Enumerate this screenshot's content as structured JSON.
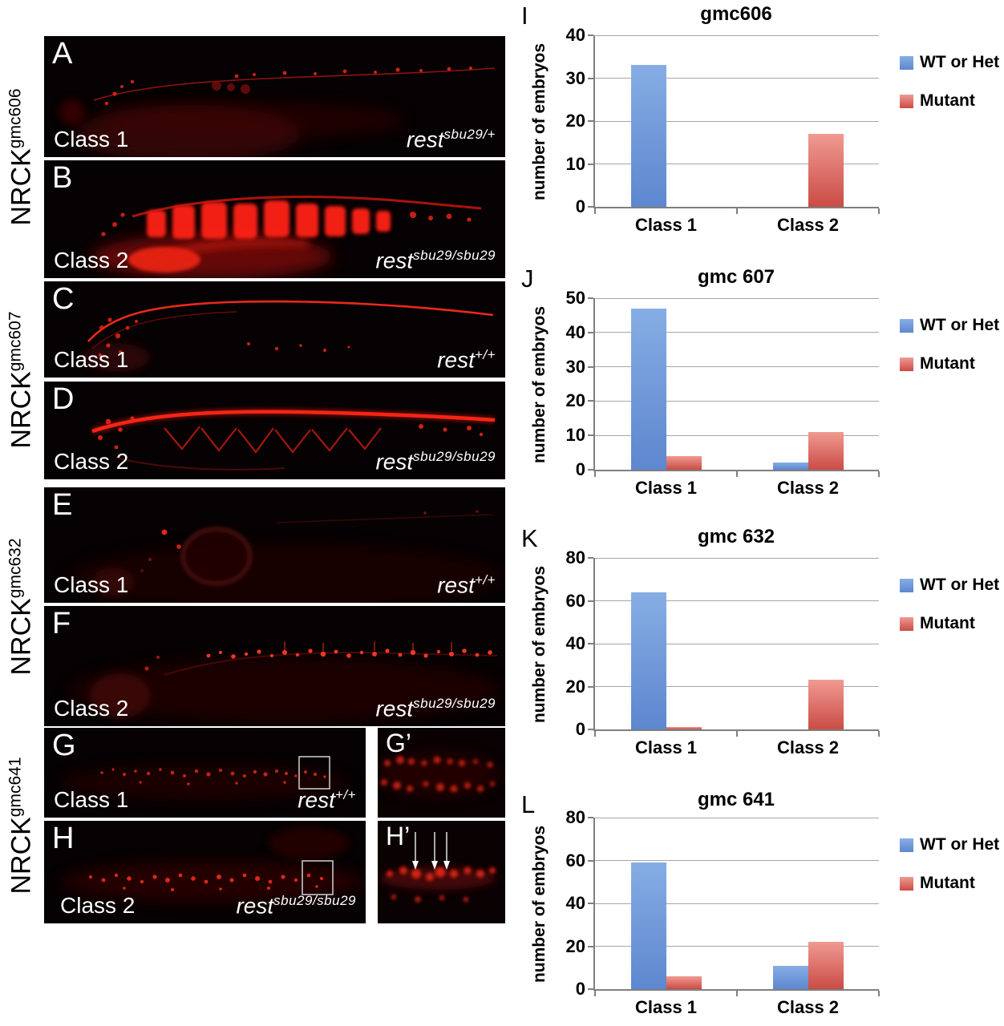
{
  "figure_rows": [
    {
      "row_label": {
        "base": "NRCK",
        "sup": "gmc606"
      },
      "panels": [
        {
          "letter": "A",
          "class_label": "Class 1",
          "genotype": {
            "base": "rest",
            "sup": "sbu29/+"
          }
        },
        {
          "letter": "B",
          "class_label": "Class 2",
          "genotype": {
            "base": "rest",
            "sup": "sbu29/sbu29"
          }
        }
      ]
    },
    {
      "row_label": {
        "base": "NRCK",
        "sup": "gmc607"
      },
      "panels": [
        {
          "letter": "C",
          "class_label": "Class 1",
          "genotype": {
            "base": "rest",
            "sup": "+/+"
          }
        },
        {
          "letter": "D",
          "class_label": "Class 2",
          "genotype": {
            "base": "rest",
            "sup": "sbu29/sbu29"
          }
        }
      ]
    },
    {
      "row_label": {
        "base": "NRCK",
        "sup": "gmc632"
      },
      "panels": [
        {
          "letter": "E",
          "class_label": "Class 1",
          "genotype": {
            "base": "rest",
            "sup": "+/+"
          }
        },
        {
          "letter": "F",
          "class_label": "Class 2",
          "genotype": {
            "base": "rest",
            "sup": "sbu29/sbu29"
          }
        }
      ]
    },
    {
      "row_label": {
        "base": "NRCK",
        "sup": "gmc641"
      },
      "panels": [
        {
          "letter": "G",
          "class_label": "Class 1",
          "genotype": {
            "base": "rest",
            "sup": "+/+"
          },
          "inset_letter": "G’"
        },
        {
          "letter": "H",
          "class_label": "Class 2",
          "genotype": {
            "base": "rest",
            "sup": "sbu29/sbu29"
          },
          "inset_letter": "H’"
        }
      ]
    }
  ],
  "chart_data": [
    {
      "type": "bar",
      "letter": "I",
      "title": "gmc606",
      "ylabel": "number of embryos",
      "xlabel": "",
      "categories": [
        "Class 1",
        "Class 2"
      ],
      "series": [
        {
          "name": "WT or Het",
          "values": [
            33,
            0
          ],
          "color_top": "#86ade4",
          "color_bottom": "#5d87cf"
        },
        {
          "name": "Mutant",
          "values": [
            0,
            17
          ],
          "color_top": "#f09a92",
          "color_bottom": "#ca4c45"
        }
      ],
      "ylim": [
        0,
        40
      ],
      "yticks": [
        0,
        10,
        20,
        30,
        40
      ],
      "grid": true,
      "legend_position": "right"
    },
    {
      "type": "bar",
      "letter": "J",
      "title": "gmc 607",
      "ylabel": "number of embryos",
      "xlabel": "",
      "categories": [
        "Class 1",
        "Class 2"
      ],
      "series": [
        {
          "name": "WT or Het",
          "values": [
            47,
            2
          ],
          "color_top": "#86ade4",
          "color_bottom": "#5d87cf"
        },
        {
          "name": "Mutant",
          "values": [
            4,
            11
          ],
          "color_top": "#f09a92",
          "color_bottom": "#ca4c45"
        }
      ],
      "ylim": [
        0,
        50
      ],
      "yticks": [
        0,
        10,
        20,
        30,
        40,
        50
      ],
      "grid": true,
      "legend_position": "right"
    },
    {
      "type": "bar",
      "letter": "K",
      "title": "gmc 632",
      "ylabel": "number of embryos",
      "xlabel": "",
      "categories": [
        "Class 1",
        "Class 2"
      ],
      "series": [
        {
          "name": "WT or Het",
          "values": [
            64,
            0
          ],
          "color_top": "#86ade4",
          "color_bottom": "#5d87cf"
        },
        {
          "name": "Mutant",
          "values": [
            1,
            23
          ],
          "color_top": "#f09a92",
          "color_bottom": "#ca4c45"
        }
      ],
      "ylim": [
        0,
        80
      ],
      "yticks": [
        0,
        20,
        40,
        60,
        80
      ],
      "grid": true,
      "legend_position": "right"
    },
    {
      "type": "bar",
      "letter": "L",
      "title": "gmc 641",
      "ylabel": "number of embryos",
      "xlabel": "",
      "categories": [
        "Class 1",
        "Class 2"
      ],
      "series": [
        {
          "name": "WT or Het",
          "values": [
            59,
            11
          ],
          "color_top": "#86ade4",
          "color_bottom": "#5d87cf"
        },
        {
          "name": "Mutant",
          "values": [
            6,
            22
          ],
          "color_top": "#f09a92",
          "color_bottom": "#ca4c45"
        }
      ],
      "ylim": [
        0,
        80
      ],
      "yticks": [
        0,
        20,
        40,
        60,
        80
      ],
      "grid": true,
      "legend_position": "right"
    }
  ],
  "colors": {
    "wt_bar_top": "#86ade4",
    "wt_bar_bottom": "#5d87cf",
    "mutant_bar_top": "#f09a92",
    "mutant_bar_bottom": "#ca4c45",
    "axis": "#7f7f7f",
    "gridline": "#a6a6a6",
    "fluorescence": "#ff2012",
    "panel_background": "#060102"
  }
}
